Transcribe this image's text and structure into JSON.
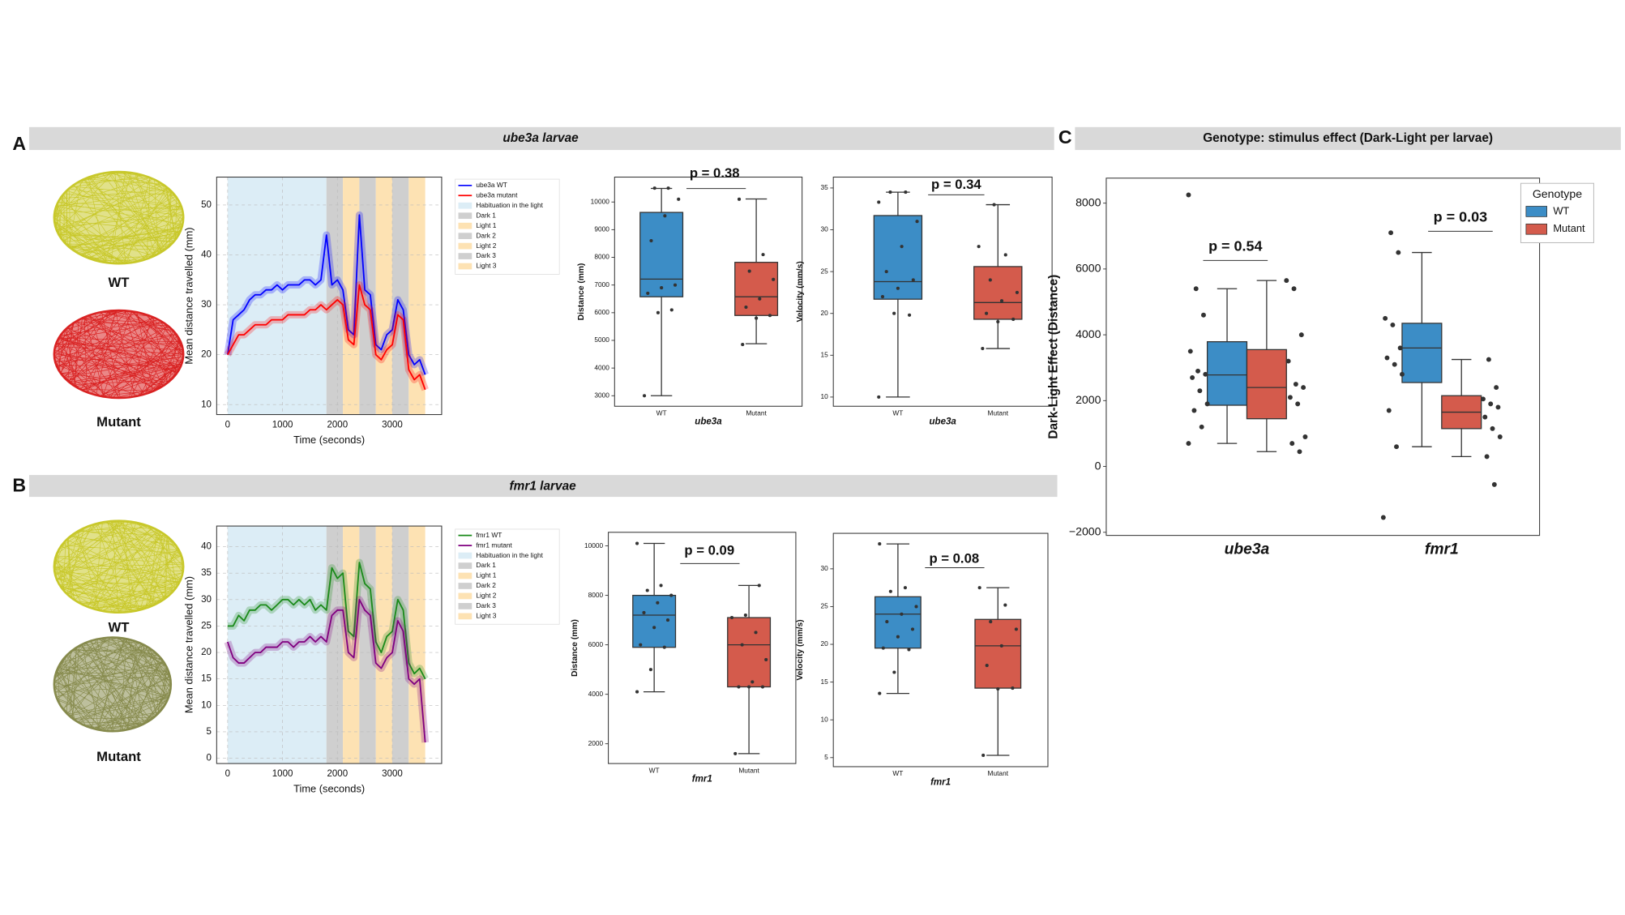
{
  "panels": [
    {
      "label": "A",
      "title": "ube3a larvae",
      "tracking": [
        {
          "label": "WT",
          "color": "#c8c82a"
        },
        {
          "label": "Mutant",
          "color": "#d92222"
        }
      ]
    },
    {
      "label": "B",
      "title": "fmr1 larvae",
      "tracking": [
        {
          "label": "WT",
          "color": "#c8c82a"
        },
        {
          "label": "Mutant",
          "color": "#868a4c"
        }
      ]
    },
    {
      "label": "C",
      "title": "Genotype: stimulus effect (Dark-Light per larvae)"
    }
  ],
  "chart_data": [
    {
      "type": "line",
      "xlabel": "Time (seconds)",
      "ylabel": "Mean distance travelled (mm)",
      "x": [
        0,
        100,
        200,
        300,
        400,
        500,
        600,
        700,
        800,
        900,
        1000,
        1100,
        1200,
        1300,
        1400,
        1500,
        1600,
        1700,
        1800,
        1900,
        2000,
        2100,
        2200,
        2300,
        2400,
        2500,
        2600,
        2700,
        2800,
        2900,
        3000,
        3100,
        3200,
        3300,
        3400,
        3500,
        3600
      ],
      "series": [
        {
          "name": "ube3a WT",
          "color": "#0000ff",
          "values": [
            20,
            27,
            28,
            29,
            31,
            32,
            32,
            33,
            33,
            34,
            33,
            34,
            34,
            34,
            35,
            35,
            34,
            35,
            44,
            34,
            35,
            33,
            25,
            24,
            48,
            33,
            32,
            22,
            21,
            24,
            25,
            31,
            29,
            20,
            18,
            19,
            16
          ]
        },
        {
          "name": "ube3a mutant",
          "color": "#ff0000",
          "values": [
            20,
            22,
            24,
            24,
            25,
            26,
            26,
            26,
            27,
            27,
            27,
            28,
            28,
            28,
            28,
            29,
            29,
            30,
            29,
            30,
            31,
            30,
            23,
            22,
            34,
            30,
            29,
            20,
            19,
            21,
            22,
            28,
            27,
            17,
            15,
            16,
            13
          ]
        }
      ],
      "periods": [
        {
          "name": "Habituation in the light",
          "start": 0,
          "end": 1800,
          "color": "#dcedf6"
        },
        {
          "name": "Dark 1",
          "start": 1800,
          "end": 2100,
          "color": "#cfcfcf"
        },
        {
          "name": "Light 1",
          "start": 2100,
          "end": 2400,
          "color": "#fde2b3"
        },
        {
          "name": "Dark 2",
          "start": 2400,
          "end": 2700,
          "color": "#cfcfcf"
        },
        {
          "name": "Light 2",
          "start": 2700,
          "end": 3000,
          "color": "#fde2b3"
        },
        {
          "name": "Dark 3",
          "start": 3000,
          "end": 3300,
          "color": "#cfcfcf"
        },
        {
          "name": "Light 3",
          "start": 3300,
          "end": 3600,
          "color": "#fde2b3"
        }
      ],
      "xlim": [
        -200,
        3900
      ],
      "ylim": [
        8,
        55.6
      ],
      "xticks": [
        0,
        1000,
        2000,
        3000
      ],
      "yticks": [
        10,
        20,
        30,
        40,
        50
      ],
      "grid": true
    },
    {
      "type": "box",
      "xlabel": "ube3a",
      "ylabel": "Distance (mm)",
      "categories": [
        "WT",
        "Mutant"
      ],
      "boxes": [
        {
          "color": "#3c8dc6",
          "whislo": 3000,
          "q1": 6575,
          "med": 7215,
          "q3": 9624,
          "whishi": 10490,
          "points": [
            3000,
            6000,
            6100,
            6700,
            6900,
            7000,
            8600,
            9500,
            10100,
            10500,
            10500
          ]
        },
        {
          "color": "#d45b4c",
          "whislo": 4880,
          "q1": 5900,
          "med": 6575,
          "q3": 7820,
          "whishi": 10110,
          "points": [
            4850,
            5800,
            5900,
            6200,
            6500,
            7200,
            7500,
            8100,
            10100
          ]
        }
      ],
      "annotation": "p = 0.38",
      "ylim": [
        2620,
        10900
      ],
      "yticks": [
        3000,
        4000,
        5000,
        6000,
        7000,
        8000,
        9000,
        10000
      ]
    },
    {
      "type": "box",
      "xlabel": "ube3a",
      "ylabel": "Velocity (mm/s)",
      "categories": [
        "WT",
        "Mutant"
      ],
      "boxes": [
        {
          "color": "#3c8dc6",
          "whislo": 10,
          "q1": 21.7,
          "med": 23.8,
          "q3": 31.7,
          "whishi": 34.5,
          "points": [
            10,
            20,
            19.8,
            22,
            23,
            24,
            25,
            28,
            31,
            34.5,
            34.5,
            33.3
          ]
        },
        {
          "color": "#d45b4c",
          "whislo": 15.8,
          "q1": 19.3,
          "med": 21.3,
          "q3": 25.6,
          "whishi": 33,
          "points": [
            15.8,
            19,
            19.3,
            20,
            21.5,
            22.5,
            24,
            27,
            28,
            33
          ]
        }
      ],
      "annotation": "p = 0.34",
      "ylim": [
        8.9,
        36.3
      ],
      "yticks": [
        10,
        15,
        20,
        25,
        30,
        35
      ]
    },
    {
      "type": "line",
      "xlabel": "Time (seconds)",
      "ylabel": "Mean distance travelled (mm)",
      "x": [
        0,
        100,
        200,
        300,
        400,
        500,
        600,
        700,
        800,
        900,
        1000,
        1100,
        1200,
        1300,
        1400,
        1500,
        1600,
        1700,
        1800,
        1900,
        2000,
        2100,
        2200,
        2300,
        2400,
        2500,
        2600,
        2700,
        2800,
        2900,
        3000,
        3100,
        3200,
        3300,
        3400,
        3500,
        3600
      ],
      "series": [
        {
          "name": "fmr1 WT",
          "color": "#1a8a1a",
          "values": [
            25,
            25,
            27,
            26,
            28,
            28,
            29,
            29,
            28,
            29,
            30,
            30,
            29,
            30,
            29,
            30,
            28,
            29,
            28,
            36,
            34,
            35,
            24,
            23,
            37,
            33,
            32,
            22,
            20,
            23,
            24,
            30,
            28,
            18,
            16,
            17,
            15
          ]
        },
        {
          "name": "fmr1 mutant",
          "color": "#800080",
          "values": [
            22,
            19,
            18,
            18,
            19,
            20,
            20,
            21,
            21,
            21,
            22,
            22,
            21,
            22,
            22,
            23,
            22,
            23,
            22,
            27,
            28,
            28,
            20,
            19,
            30,
            28,
            27,
            18,
            17,
            19,
            20,
            26,
            24,
            15,
            14,
            15,
            3
          ]
        }
      ],
      "periods": [
        {
          "name": "Habituation in the light",
          "start": 0,
          "end": 1800,
          "color": "#dcedf6"
        },
        {
          "name": "Dark 1",
          "start": 1800,
          "end": 2100,
          "color": "#cfcfcf"
        },
        {
          "name": "Light 1",
          "start": 2100,
          "end": 2400,
          "color": "#fde2b3"
        },
        {
          "name": "Dark 2",
          "start": 2400,
          "end": 2700,
          "color": "#cfcfcf"
        },
        {
          "name": "Light 2",
          "start": 2700,
          "end": 3000,
          "color": "#fde2b3"
        },
        {
          "name": "Dark 3",
          "start": 3000,
          "end": 3300,
          "color": "#cfcfcf"
        },
        {
          "name": "Light 3",
          "start": 3300,
          "end": 3600,
          "color": "#fde2b3"
        }
      ],
      "xlim": [
        -200,
        3900
      ],
      "ylim": [
        -1,
        43.9
      ],
      "xticks": [
        0,
        1000,
        2000,
        3000
      ],
      "yticks": [
        0,
        5,
        10,
        15,
        20,
        25,
        30,
        35,
        40
      ],
      "grid": true
    },
    {
      "type": "box",
      "xlabel": "fmr1",
      "ylabel": "Distance (mm)",
      "categories": [
        "WT",
        "Mutant"
      ],
      "boxes": [
        {
          "color": "#3c8dc6",
          "whislo": 4100,
          "q1": 5900,
          "med": 7200,
          "q3": 8000,
          "whishi": 10100,
          "points": [
            4100,
            5000,
            5900,
            6000,
            6700,
            7000,
            7300,
            7700,
            8000,
            8200,
            8400,
            10100
          ]
        },
        {
          "color": "#d45b4c",
          "whislo": 1600,
          "q1": 4300,
          "med": 6000,
          "q3": 7100,
          "whishi": 8400,
          "points": [
            1600,
            4300,
            4300,
            4300,
            4500,
            5400,
            6000,
            6500,
            7100,
            7200,
            8400
          ]
        }
      ],
      "annotation": "p = 0.09",
      "ylim": [
        1200,
        10550
      ],
      "yticks": [
        2000,
        4000,
        6000,
        8000,
        10000
      ]
    },
    {
      "type": "box",
      "xlabel": "fmr1",
      "ylabel": "Velocity (mm/s)",
      "categories": [
        "WT",
        "Mutant"
      ],
      "boxes": [
        {
          "color": "#3c8dc6",
          "whislo": 13.5,
          "q1": 19.5,
          "med": 24,
          "q3": 26.3,
          "whishi": 33.3,
          "points": [
            13.5,
            16.3,
            19.3,
            19.5,
            21,
            22,
            23,
            24,
            25,
            27,
            27.5,
            33.3
          ]
        },
        {
          "color": "#d45b4c",
          "whislo": 5.3,
          "q1": 14.2,
          "med": 19.8,
          "q3": 23.3,
          "whishi": 27.5,
          "points": [
            5.3,
            14.1,
            14.2,
            17.2,
            19.8,
            22,
            23,
            25.2,
            27.5
          ]
        }
      ],
      "annotation": "p = 0.08",
      "ylim": [
        3.8,
        34.7
      ],
      "yticks": [
        5,
        10,
        15,
        20,
        25,
        30
      ]
    },
    {
      "type": "grouped_box",
      "ylabel": "Dark-Light Effect (Distance)",
      "categories": [
        "ube3a",
        "fmr1"
      ],
      "legend_title": "Genotype",
      "legend": "upper right",
      "series": [
        {
          "name": "WT",
          "color": "#3c8dc6",
          "boxes": [
            {
              "whislo": 700,
              "q1": 1860,
              "med": 2780,
              "q3": 3790,
              "whishi": 5400,
              "points": [
                8250,
                5400,
                4600,
                3500,
                2900,
                2800,
                2700,
                2300,
                1900,
                1700,
                1200,
                700
              ]
            },
            {
              "whislo": 600,
              "q1": 2550,
              "med": 3600,
              "q3": 4350,
              "whishi": 6500,
              "points": [
                7100,
                6500,
                4500,
                4300,
                3600,
                3300,
                3100,
                2800,
                1700,
                600,
                -1550
              ]
            }
          ]
        },
        {
          "name": "Mutant",
          "color": "#d45b4c",
          "boxes": [
            {
              "whislo": 450,
              "q1": 1450,
              "med": 2400,
              "q3": 3550,
              "whishi": 5650,
              "points": [
                5650,
                5400,
                4000,
                3200,
                2500,
                2400,
                2100,
                1900,
                900,
                700,
                450
              ]
            },
            {
              "whislo": 300,
              "q1": 1150,
              "med": 1650,
              "q3": 2150,
              "whishi": 3250,
              "points": [
                3250,
                2400,
                2050,
                1900,
                1800,
                1500,
                1150,
                900,
                300,
                -550
              ]
            }
          ]
        }
      ],
      "annotations": [
        "p = 0.54",
        "p = 0.03"
      ],
      "ylim": [
        -2095,
        8760
      ],
      "yticks": [
        {
          "value": -2000,
          "label": "−2000"
        },
        0,
        2000,
        4000,
        6000,
        8000
      ]
    }
  ]
}
